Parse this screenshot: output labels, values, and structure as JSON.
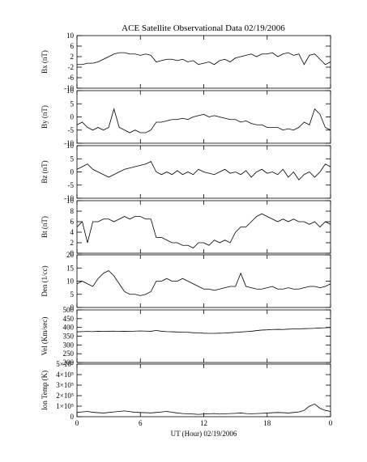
{
  "chart_data": [
    {
      "type": "line",
      "title": "ACE Satellite Observational Data   02/19/2006",
      "ylabel": "Bx (nT)",
      "color": "#000000",
      "x": [
        0,
        0.5,
        1,
        1.5,
        2,
        2.5,
        3,
        3.5,
        4,
        4.5,
        5,
        5.5,
        6,
        6.5,
        7,
        7.5,
        8,
        8.5,
        9,
        9.5,
        10,
        10.5,
        11,
        11.5,
        12,
        12.5,
        13,
        13.5,
        14,
        14.5,
        15,
        15.5,
        16,
        16.5,
        17,
        17.5,
        18,
        18.5,
        19,
        19.5,
        20,
        20.5,
        21,
        21.5,
        22,
        22.5,
        23,
        23.5,
        24
      ],
      "values": [
        -1,
        -1,
        -0.5,
        -0.5,
        0,
        1,
        2,
        3,
        3.5,
        3.5,
        3,
        3,
        2.5,
        3,
        2.5,
        0,
        0.5,
        1,
        1,
        0.5,
        1,
        0,
        0.5,
        -1,
        -0.5,
        0,
        -1,
        0.5,
        1,
        0,
        1.5,
        2,
        2.5,
        3,
        2,
        3,
        3,
        3.5,
        2,
        3,
        3.5,
        2.5,
        3,
        -1,
        2.5,
        3,
        1,
        -1,
        0
      ],
      "xlim": [
        0,
        24
      ],
      "ylim": [
        -10,
        10
      ],
      "yticks": [
        -10,
        -6,
        -2,
        2,
        6,
        10
      ]
    },
    {
      "type": "line",
      "ylabel": "By (nT)",
      "color": "#000000",
      "x": [
        0,
        0.5,
        1,
        1.5,
        2,
        2.5,
        3,
        3.5,
        4,
        4.5,
        5,
        5.5,
        6,
        6.5,
        7,
        7.5,
        8,
        8.5,
        9,
        9.5,
        10,
        10.5,
        11,
        11.5,
        12,
        12.5,
        13,
        13.5,
        14,
        14.5,
        15,
        15.5,
        16,
        16.5,
        17,
        17.5,
        18,
        18.5,
        19,
        19.5,
        20,
        20.5,
        21,
        21.5,
        22,
        22.5,
        23,
        23.5,
        24
      ],
      "values": [
        -3,
        -2,
        -4,
        -5,
        -4,
        -5,
        -4,
        3,
        -4,
        -5,
        -6,
        -5,
        -6,
        -6,
        -5,
        -2,
        -2,
        -1.5,
        -1,
        -1,
        -0.5,
        -1,
        0,
        0.5,
        1,
        0,
        0.5,
        0,
        -0.5,
        -1,
        -1,
        -2,
        -1.5,
        -2.5,
        -3,
        -3,
        -4,
        -4,
        -4,
        -5,
        -4.5,
        -5,
        -4,
        -2,
        -3,
        3,
        1,
        -4,
        -5
      ],
      "xlim": [
        0,
        24
      ],
      "ylim": [
        -10,
        10
      ],
      "yticks": [
        -10,
        -5,
        0,
        5,
        10
      ]
    },
    {
      "type": "line",
      "ylabel": "Bz (nT)",
      "color": "#000000",
      "x": [
        0,
        0.5,
        1,
        1.5,
        2,
        2.5,
        3,
        3.5,
        4,
        4.5,
        5,
        5.5,
        6,
        6.5,
        7,
        7.5,
        8,
        8.5,
        9,
        9.5,
        10,
        10.5,
        11,
        11.5,
        12,
        12.5,
        13,
        13.5,
        14,
        14.5,
        15,
        15.5,
        16,
        16.5,
        17,
        17.5,
        18,
        18.5,
        19,
        19.5,
        20,
        20.5,
        21,
        21.5,
        22,
        22.5,
        23,
        23.5,
        24
      ],
      "values": [
        1,
        2,
        3,
        1,
        0,
        -1,
        -2,
        -1,
        0,
        1,
        1.5,
        2,
        2.5,
        3,
        4,
        0,
        -1,
        0,
        -1,
        0.5,
        -1,
        0,
        -1,
        1,
        0,
        -0.5,
        -1,
        0,
        1,
        -0.5,
        0,
        -1,
        0.5,
        -2,
        0,
        1,
        -0.5,
        0,
        -1,
        1,
        -2,
        0,
        -3,
        -1,
        0,
        -2,
        0,
        3,
        2
      ],
      "xlim": [
        0,
        24
      ],
      "ylim": [
        -10,
        10
      ],
      "yticks": [
        -10,
        -5,
        0,
        5,
        10
      ]
    },
    {
      "type": "line",
      "ylabel": "Bt (nT)",
      "color": "#000000",
      "x": [
        0,
        0.5,
        1,
        1.5,
        2,
        2.5,
        3,
        3.5,
        4,
        4.5,
        5,
        5.5,
        6,
        6.5,
        7,
        7.5,
        8,
        8.5,
        9,
        9.5,
        10,
        10.5,
        11,
        11.5,
        12,
        12.5,
        13,
        13.5,
        14,
        14.5,
        15,
        15.5,
        16,
        16.5,
        17,
        17.5,
        18,
        18.5,
        19,
        19.5,
        20,
        20.5,
        21,
        21.5,
        22,
        22.5,
        23,
        23.5,
        24
      ],
      "values": [
        5,
        6,
        2,
        6,
        6,
        6.5,
        6.5,
        6,
        6.5,
        7,
        6.5,
        7,
        7,
        6.5,
        6.5,
        3,
        3,
        2.5,
        2,
        2,
        1.5,
        1.5,
        1,
        2,
        2,
        1.5,
        2.5,
        2,
        2.5,
        2,
        4,
        5,
        5,
        6,
        7,
        7.5,
        7,
        6.5,
        6,
        6.5,
        6,
        6.5,
        6,
        6,
        5.5,
        6,
        5,
        6,
        5.5
      ],
      "xlim": [
        0,
        24
      ],
      "ylim": [
        0,
        10
      ],
      "yticks": [
        0,
        2,
        4,
        6,
        8,
        10
      ]
    },
    {
      "type": "line",
      "ylabel": "Den (1/cc)",
      "color": "#000000",
      "x": [
        0,
        0.5,
        1,
        1.5,
        2,
        2.5,
        3,
        3.5,
        4,
        4.5,
        5,
        5.5,
        6,
        6.5,
        7,
        7.5,
        8,
        8.5,
        9,
        9.5,
        10,
        10.5,
        11,
        11.5,
        12,
        12.5,
        13,
        13.5,
        14,
        14.5,
        15,
        15.5,
        16,
        16.5,
        17,
        17.5,
        18,
        18.5,
        19,
        19.5,
        20,
        20.5,
        21,
        21.5,
        22,
        22.5,
        23,
        23.5,
        24
      ],
      "values": [
        9,
        10,
        9,
        8,
        11,
        13,
        14,
        12,
        9,
        6,
        5,
        5,
        4.5,
        5,
        6,
        10,
        10,
        11,
        10,
        10,
        11,
        10,
        9,
        8,
        7,
        7,
        6.5,
        7,
        7.5,
        8,
        8,
        13,
        8,
        7.5,
        7,
        7,
        7.5,
        8,
        7,
        7,
        7.5,
        7,
        7,
        7.5,
        8,
        8,
        7.5,
        8,
        9
      ],
      "xlim": [
        0,
        24
      ],
      "ylim": [
        0,
        20
      ],
      "yticks": [
        0,
        5,
        10,
        15,
        20
      ]
    },
    {
      "type": "line",
      "ylabel": "Vel (Km/sec)",
      "color": "#000000",
      "x": [
        0,
        0.5,
        1,
        1.5,
        2,
        2.5,
        3,
        3.5,
        4,
        4.5,
        5,
        5.5,
        6,
        6.5,
        7,
        7.5,
        8,
        8.5,
        9,
        9.5,
        10,
        10.5,
        11,
        11.5,
        12,
        12.5,
        13,
        13.5,
        14,
        14.5,
        15,
        15.5,
        16,
        16.5,
        17,
        17.5,
        18,
        18.5,
        19,
        19.5,
        20,
        20.5,
        21,
        21.5,
        22,
        22.5,
        23,
        23.5,
        24
      ],
      "values": [
        375,
        376,
        377,
        376,
        378,
        377,
        378,
        379,
        377,
        378,
        377,
        379,
        380,
        379,
        378,
        383,
        378,
        376,
        375,
        374,
        373,
        372,
        370,
        369,
        367,
        366,
        366,
        367,
        368,
        370,
        372,
        374,
        376,
        378,
        382,
        385,
        386,
        388,
        389,
        388,
        390,
        391,
        392,
        393,
        394,
        395,
        397,
        398,
        400
      ],
      "xlim": [
        0,
        24
      ],
      "ylim": [
        200,
        500
      ],
      "yticks": [
        200,
        250,
        300,
        350,
        400,
        450,
        500
      ]
    },
    {
      "type": "line",
      "ylabel": "Ion Temp (K)",
      "xlabel": "UT (Hour)   02/19/2006",
      "color": "#000000",
      "x": [
        0,
        0.5,
        1,
        1.5,
        2,
        2.5,
        3,
        3.5,
        4,
        4.5,
        5,
        5.5,
        6,
        6.5,
        7,
        7.5,
        8,
        8.5,
        9,
        9.5,
        10,
        10.5,
        11,
        11.5,
        12,
        12.5,
        13,
        13.5,
        14,
        14.5,
        15,
        15.5,
        16,
        16.5,
        17,
        17.5,
        18,
        18.5,
        19,
        19.5,
        20,
        20.5,
        21,
        21.5,
        22,
        22.5,
        23,
        23.5,
        24
      ],
      "values": [
        40000,
        45000,
        50000,
        42000,
        38000,
        35000,
        40000,
        45000,
        50000,
        55000,
        48000,
        42000,
        40000,
        38000,
        36000,
        40000,
        45000,
        50000,
        42000,
        35000,
        30000,
        28000,
        25000,
        22000,
        25000,
        28000,
        30000,
        25000,
        28000,
        30000,
        32000,
        35000,
        30000,
        28000,
        30000,
        32000,
        35000,
        38000,
        40000,
        38000,
        35000,
        40000,
        45000,
        60000,
        100000,
        120000,
        80000,
        60000,
        50000
      ],
      "xlim": [
        0,
        24
      ],
      "ylim": [
        0,
        500000
      ],
      "yticks": [
        0,
        {
          "value": 100000,
          "label": "1×10⁵"
        },
        {
          "value": 200000,
          "label": "2×10⁵"
        },
        {
          "value": 300000,
          "label": "3×10⁵"
        },
        {
          "value": 400000,
          "label": "4×10⁵"
        },
        {
          "value": 500000,
          "label": "5×10⁵"
        }
      ],
      "xticks": [
        0,
        6,
        12,
        18,
        {
          "value": 24,
          "label": "0"
        }
      ]
    }
  ]
}
